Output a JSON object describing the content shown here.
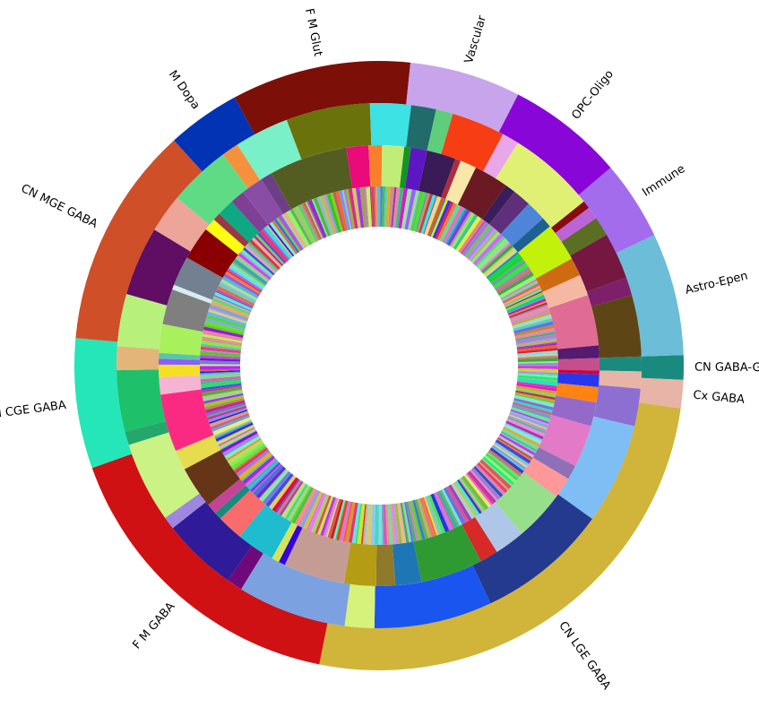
{
  "chart_data": {
    "type": "pie",
    "subtype": "multi-level donut (sunburst)",
    "title": "",
    "start_angle_deg_clockwise_from_east": 0,
    "legend": "none",
    "rings": [
      "class (outer)",
      "subclass (middle)",
      "supertype (inner, many thin slices)"
    ],
    "classes": [
      {
        "name": "CN GABA-Glut",
        "value": 1.3,
        "color": "#1a8a7e"
      },
      {
        "name": "Cx GABA",
        "value": 1.5,
        "color": "#e8b4a8"
      },
      {
        "name": "CN LGE GABA",
        "value": 25.9,
        "color": "#d0b53a"
      },
      {
        "name": "F M GABA",
        "value": 16.4,
        "color": "#cf1114"
      },
      {
        "name": "CN CGE GABA",
        "value": 6.9,
        "color": "#24e6b8"
      },
      {
        "name": "CN MGE GABA",
        "value": 11.8,
        "color": "#cf4f29"
      },
      {
        "name": "M Dopa",
        "value": 3.9,
        "color": "#0233b5"
      },
      {
        "name": "F M Glut",
        "value": 9.5,
        "color": "#7c0f07"
      },
      {
        "name": "Vascular",
        "value": 5.9,
        "color": "#c8a4ec"
      },
      {
        "name": "OPC-Oligo",
        "value": 6.2,
        "color": "#8806d8"
      },
      {
        "name": "Immune",
        "value": 4.2,
        "color": "#a36ced"
      },
      {
        "name": "Astro-Epen",
        "value": 6.5,
        "color": "#6cbdd8"
      }
    ],
    "subclasses": [
      {
        "value": 1.3,
        "color": "#c3508c"
      },
      {
        "value": 0.4,
        "color": "#c9073f"
      },
      {
        "value": 1.3,
        "color": "#2837ee"
      },
      {
        "value": 1.6,
        "color": "#ff8313"
      },
      {
        "value": 2.5,
        "color": "#9469c7"
      },
      {
        "value": 4.4,
        "color": "#e27ac8"
      },
      {
        "value": 1.5,
        "color": "#8d70b8"
      },
      {
        "value": 2.2,
        "color": "#ff9898"
      },
      {
        "value": 5.2,
        "color": "#98df8b"
      },
      {
        "value": 3.2,
        "color": "#aec7e8"
      },
      {
        "value": 1.9,
        "color": "#d62928"
      },
      {
        "value": 6.5,
        "color": "#2f9a31"
      },
      {
        "value": 2.7,
        "color": "#1f76b5"
      },
      {
        "value": 2.0,
        "color": "#8f7a2b"
      },
      {
        "value": 3.3,
        "color": "#b49c14"
      },
      {
        "value": 6.4,
        "color": "#c49c94"
      },
      {
        "value": 0.7,
        "color": "#3404d8"
      },
      {
        "value": 0.8,
        "color": "#d3e35a"
      },
      {
        "value": 4.0,
        "color": "#1fbccf"
      },
      {
        "value": 2.7,
        "color": "#fa6b6b"
      },
      {
        "value": 0.8,
        "color": "#1a8a7e"
      },
      {
        "value": 1.1,
        "color": "#c54397"
      },
      {
        "value": 4.4,
        "color": "#663417"
      },
      {
        "value": 2.1,
        "color": "#e7dc4e"
      },
      {
        "value": 6.0,
        "color": "#fa2a82"
      },
      {
        "value": 1.8,
        "color": "#f5b4d2"
      },
      {
        "value": 1.3,
        "color": "#f6df21"
      },
      {
        "value": 0.6,
        "color": "#8a5ef7"
      },
      {
        "value": 0.6,
        "color": "#5ac4a9"
      },
      {
        "value": 3.0,
        "color": "#a8f05c"
      },
      {
        "value": 3.7,
        "color": "#7f7f7f"
      },
      {
        "value": 0.5,
        "color": "#d8ecf0"
      },
      {
        "value": 3.1,
        "color": "#728091"
      },
      {
        "value": 3.5,
        "color": "#8a0002"
      },
      {
        "value": 1.3,
        "color": "#ffff10"
      },
      {
        "value": 0.8,
        "color": "#9a3846"
      },
      {
        "value": 1.8,
        "color": "#0ea882"
      },
      {
        "value": 1.5,
        "color": "#7e4094"
      },
      {
        "value": 2.3,
        "color": "#8a4da6"
      },
      {
        "value": 1.2,
        "color": "#6e3f86"
      },
      {
        "value": 8.2,
        "color": "#545d21"
      },
      {
        "value": 2.3,
        "color": "#ea0a7a"
      },
      {
        "value": 1.4,
        "color": "#fa7f2a"
      },
      {
        "value": 2.3,
        "color": "#c2ec78"
      },
      {
        "value": 0.7,
        "color": "#13951f"
      },
      {
        "value": 1.7,
        "color": "#5d16c4"
      },
      {
        "value": 3.0,
        "color": "#3a1a57"
      },
      {
        "value": 0.6,
        "color": "#ac2c40"
      },
      {
        "value": 1.7,
        "color": "#f8e7a8"
      },
      {
        "value": 3.6,
        "color": "#6b1a24"
      },
      {
        "value": 1.1,
        "color": "#3a1d5b"
      },
      {
        "value": 1.9,
        "color": "#5f2f7c"
      },
      {
        "value": 2.1,
        "color": "#4f85d8"
      },
      {
        "value": 1.1,
        "color": "#1e6094"
      },
      {
        "value": 4.0,
        "color": "#c2f20c"
      },
      {
        "value": 1.9,
        "color": "#ce6b12"
      },
      {
        "value": 2.2,
        "color": "#f5b9a3"
      },
      {
        "value": 5.3,
        "color": "#e06b94"
      },
      {
        "value": 1.3,
        "color": "#541b6e"
      }
    ],
    "middle_ring_darker_second_layer": [
      {
        "from_deg": 300,
        "to_deg": 325,
        "color": "#67b3e0",
        "note": "part of outer-middle transition band"
      }
    ]
  }
}
